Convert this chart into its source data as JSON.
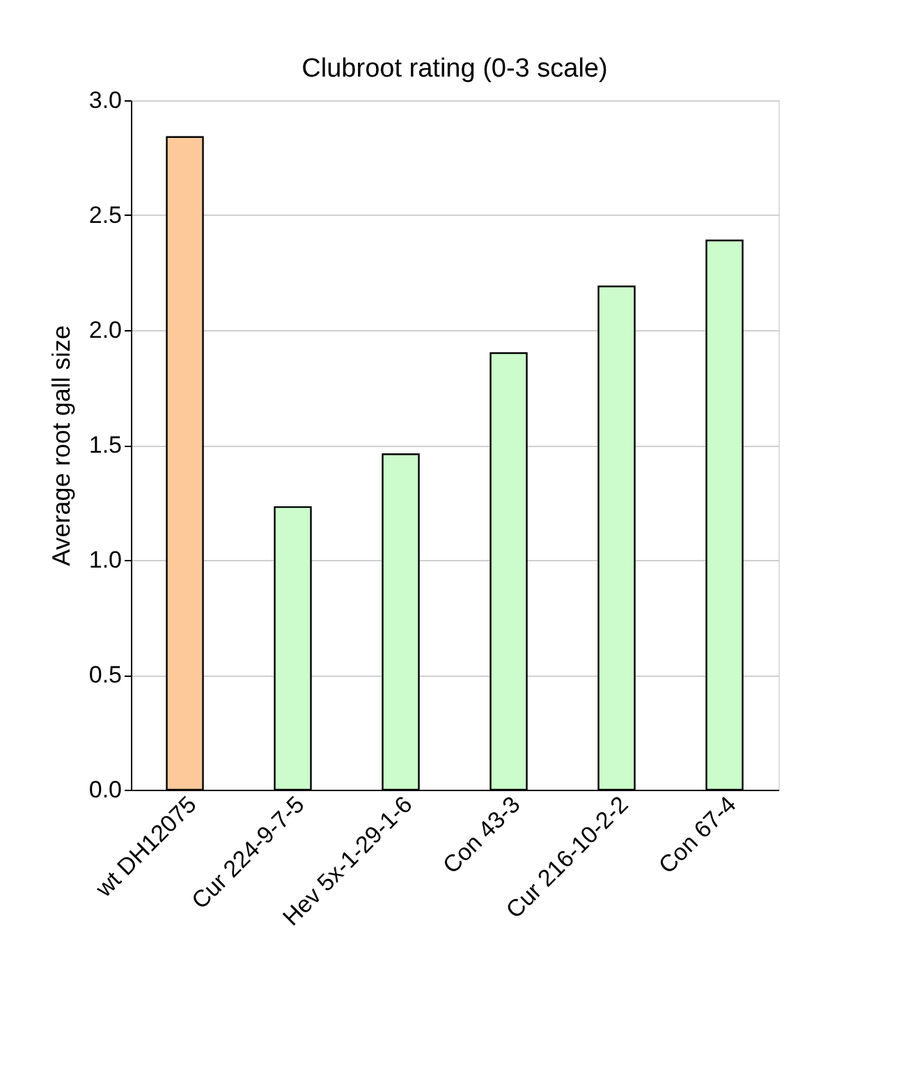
{
  "chart_data": {
    "type": "bar",
    "title": "Clubroot rating (0-3 scale)",
    "ylabel": "Average root gall size",
    "categories": [
      "wt DH12075",
      "Cur 224-9-7-5",
      "Hev 5x-1-29-1-6",
      "Con 43-3",
      "Cur 216-10-2-2",
      "Con 67-4"
    ],
    "values": [
      2.84,
      1.23,
      1.46,
      1.9,
      2.19,
      2.39
    ],
    "colors": [
      "#fdc99a",
      "#ccfccc",
      "#ccfccc",
      "#ccfccc",
      "#ccfccc",
      "#ccfccc"
    ],
    "ylim": [
      0,
      3
    ],
    "yticks": [
      {
        "value": 0,
        "label": "0.0"
      },
      {
        "value": 0.5,
        "label": "0.5"
      },
      {
        "value": 1,
        "label": "1.0"
      },
      {
        "value": 1.5,
        "label": "1.5"
      },
      {
        "value": 2,
        "label": "2.0"
      },
      {
        "value": 2.5,
        "label": "2.5"
      },
      {
        "value": 3,
        "label": "3.0"
      }
    ],
    "grid": "y"
  }
}
